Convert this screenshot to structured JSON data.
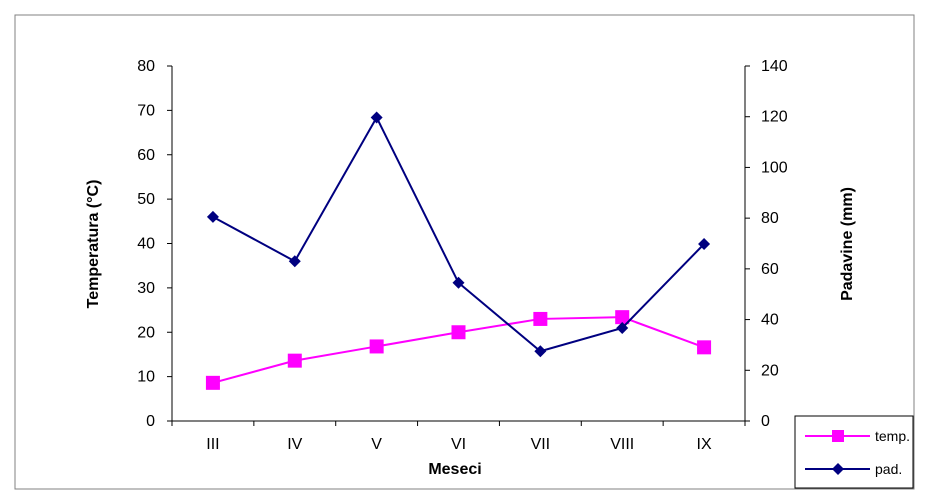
{
  "chart_data": {
    "type": "line",
    "categories": [
      "III",
      "IV",
      "V",
      "VI",
      "VII",
      "VIII",
      "IX"
    ],
    "xlabel": "Meseci",
    "ylabel_left": "Temperatura (°C)",
    "ylabel_right": "Padavine (mm)",
    "ylim_left": [
      0,
      80
    ],
    "ylim_right": [
      0,
      140
    ],
    "yticks_left": [
      "0",
      "10",
      "20",
      "30",
      "40",
      "50",
      "60",
      "70",
      "80"
    ],
    "yticks_right": [
      "0",
      "20",
      "40",
      "60",
      "80",
      "100",
      "120",
      "140"
    ],
    "grid": false,
    "legend_position": "bottom-right",
    "series": [
      {
        "name": "temp.",
        "axis": "left",
        "color": "#ff00ff",
        "marker": "square",
        "values": [
          8.6,
          13.6,
          16.8,
          20.0,
          23.0,
          23.4,
          16.6
        ]
      },
      {
        "name": "pad.",
        "axis": "right",
        "color": "#000080",
        "marker": "diamond",
        "values": [
          80.5,
          63.0,
          119.7,
          54.5,
          27.5,
          36.7,
          69.8
        ]
      }
    ]
  }
}
